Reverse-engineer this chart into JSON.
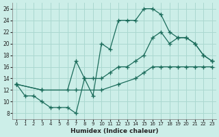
{
  "xlabel": "Humidex (Indice chaleur)",
  "bg_color": "#cceee8",
  "grid_color": "#aad8d0",
  "line_color": "#1a6b5a",
  "xlim": [
    -0.5,
    23.5
  ],
  "ylim": [
    7,
    27
  ],
  "xticks": [
    0,
    1,
    2,
    3,
    4,
    5,
    6,
    7,
    8,
    9,
    10,
    11,
    12,
    13,
    14,
    15,
    16,
    17,
    18,
    19,
    20,
    21,
    22,
    23
  ],
  "yticks": [
    8,
    10,
    12,
    14,
    16,
    18,
    20,
    22,
    24,
    26
  ],
  "line1_x": [
    0,
    1,
    2,
    3,
    4,
    5,
    6,
    7,
    8,
    9,
    10,
    11,
    12,
    13,
    14,
    15,
    16,
    17,
    18,
    19,
    20,
    21,
    22,
    23
  ],
  "line1_y": [
    13,
    11,
    11,
    10,
    9,
    9,
    9,
    8,
    14,
    11,
    20,
    19,
    24,
    24,
    24,
    26,
    26,
    25,
    22,
    21,
    21,
    20,
    18,
    17
  ],
  "line2_x": [
    0,
    3,
    6,
    7,
    8,
    9,
    10,
    11,
    12,
    13,
    14,
    15,
    16,
    17,
    18,
    19,
    20,
    21,
    22,
    23
  ],
  "line2_y": [
    13,
    12,
    12,
    17,
    14,
    14,
    14,
    15,
    16,
    16,
    17,
    18,
    21,
    22,
    20,
    21,
    21,
    20,
    18,
    17
  ],
  "line3_x": [
    0,
    3,
    7,
    10,
    12,
    14,
    15,
    16,
    17,
    18,
    19,
    20,
    21,
    22,
    23
  ],
  "line3_y": [
    13,
    12,
    12,
    12,
    13,
    14,
    15,
    16,
    16,
    16,
    16,
    16,
    16,
    16,
    16
  ]
}
